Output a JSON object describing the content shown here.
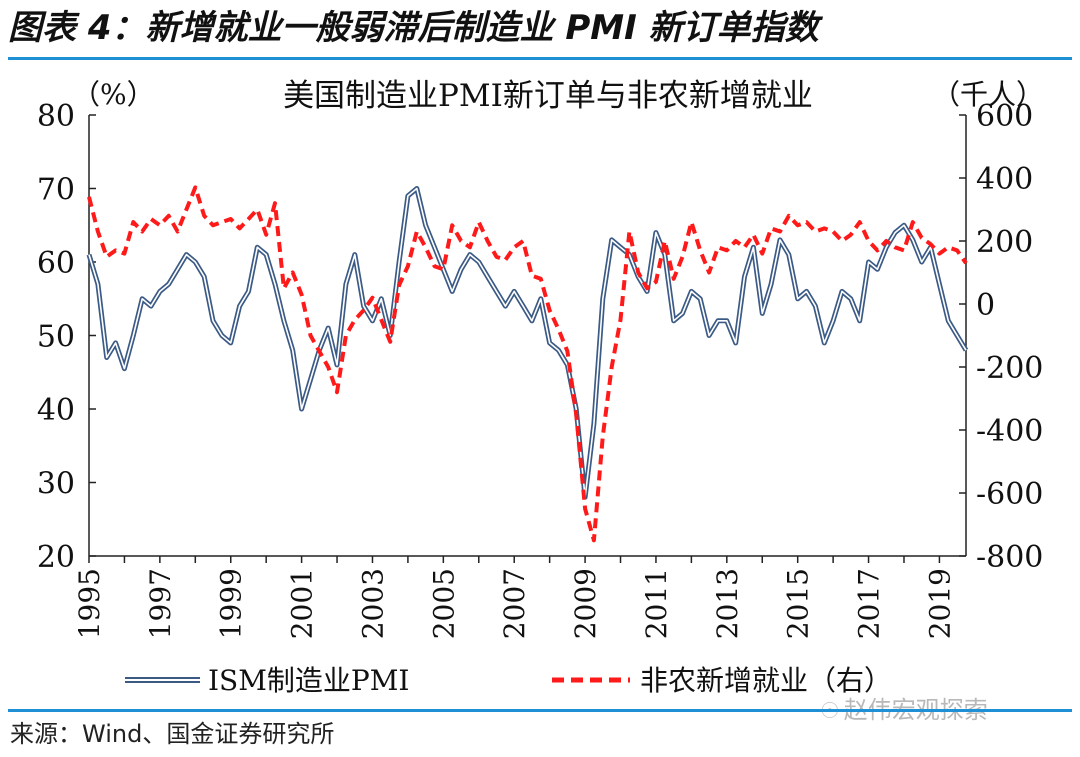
{
  "figure_title": "图表 4：新增就业一般弱滞后制造业 PMI 新订单指数",
  "source_text": "来源：Wind、国金证券研究所",
  "watermark": "赵伟宏观探索",
  "watermark_icon": "wechat-icon",
  "colors": {
    "pmi": "#3b5a85",
    "payrolls": "#ff1a1a",
    "rule": "#1f8fd6"
  },
  "chart_data": {
    "type": "line",
    "title": "美国制造业PMI新订单与非农新增就业",
    "left_unit": "（%）",
    "right_unit": "（千人）",
    "y_left_lim": [
      20,
      80
    ],
    "y_left_ticks": [
      "80",
      "70",
      "60",
      "50",
      "40",
      "30",
      "20"
    ],
    "y_left_tick_values": [
      80,
      70,
      60,
      50,
      40,
      30,
      20
    ],
    "y_right_lim": [
      -800,
      600
    ],
    "y_right_ticks": [
      "600",
      "400",
      "200",
      "0",
      "-200",
      "-400",
      "-600",
      "-800"
    ],
    "y_right_tick_values": [
      600,
      400,
      200,
      0,
      -200,
      -400,
      -600,
      -800
    ],
    "x_lim": [
      1995,
      2019.75
    ],
    "x_ticks": [
      "1995",
      "1997",
      "1999",
      "2001",
      "2003",
      "2005",
      "2007",
      "2009",
      "2011",
      "2013",
      "2015",
      "2017",
      "2019"
    ],
    "x_tick_values": [
      1995,
      1997,
      1999,
      2001,
      2003,
      2005,
      2007,
      2009,
      2011,
      2013,
      2015,
      2017,
      2019
    ],
    "series": [
      {
        "name": "ISM制造业PMI",
        "axis": "left",
        "style": "double-line",
        "points": [
          [
            1995.0,
            61
          ],
          [
            1995.25,
            57
          ],
          [
            1995.5,
            47
          ],
          [
            1995.75,
            49
          ],
          [
            1996.0,
            45.5
          ],
          [
            1996.25,
            50
          ],
          [
            1996.5,
            55
          ],
          [
            1996.75,
            54
          ],
          [
            1997.0,
            56
          ],
          [
            1997.25,
            57
          ],
          [
            1997.5,
            59
          ],
          [
            1997.75,
            61
          ],
          [
            1998.0,
            60
          ],
          [
            1998.25,
            58
          ],
          [
            1998.5,
            52
          ],
          [
            1998.75,
            50
          ],
          [
            1999.0,
            49
          ],
          [
            1999.25,
            54
          ],
          [
            1999.5,
            56
          ],
          [
            1999.75,
            62
          ],
          [
            2000.0,
            61
          ],
          [
            2000.25,
            57
          ],
          [
            2000.5,
            52
          ],
          [
            2000.75,
            48
          ],
          [
            2001.0,
            40
          ],
          [
            2001.25,
            44
          ],
          [
            2001.5,
            48
          ],
          [
            2001.75,
            51
          ],
          [
            2002.0,
            46
          ],
          [
            2002.25,
            57
          ],
          [
            2002.5,
            61
          ],
          [
            2002.75,
            54
          ],
          [
            2003.0,
            52
          ],
          [
            2003.25,
            55
          ],
          [
            2003.5,
            50
          ],
          [
            2003.75,
            60
          ],
          [
            2004.0,
            69
          ],
          [
            2004.25,
            70
          ],
          [
            2004.5,
            65
          ],
          [
            2004.75,
            62
          ],
          [
            2005.0,
            59
          ],
          [
            2005.25,
            56
          ],
          [
            2005.5,
            59
          ],
          [
            2005.75,
            61
          ],
          [
            2006.0,
            60
          ],
          [
            2006.25,
            58
          ],
          [
            2006.5,
            56
          ],
          [
            2006.75,
            54
          ],
          [
            2007.0,
            56
          ],
          [
            2007.25,
            54
          ],
          [
            2007.5,
            52
          ],
          [
            2007.75,
            55
          ],
          [
            2008.0,
            49
          ],
          [
            2008.25,
            48
          ],
          [
            2008.5,
            46
          ],
          [
            2008.75,
            40
          ],
          [
            2009.0,
            28
          ],
          [
            2009.25,
            38
          ],
          [
            2009.5,
            55
          ],
          [
            2009.75,
            63
          ],
          [
            2010.0,
            62
          ],
          [
            2010.25,
            61
          ],
          [
            2010.5,
            58
          ],
          [
            2010.75,
            56
          ],
          [
            2011.0,
            64
          ],
          [
            2011.25,
            61
          ],
          [
            2011.5,
            52
          ],
          [
            2011.75,
            53
          ],
          [
            2012.0,
            56
          ],
          [
            2012.25,
            55
          ],
          [
            2012.5,
            50
          ],
          [
            2012.75,
            52
          ],
          [
            2013.0,
            52
          ],
          [
            2013.25,
            49
          ],
          [
            2013.5,
            58
          ],
          [
            2013.75,
            62
          ],
          [
            2014.0,
            53
          ],
          [
            2014.25,
            57
          ],
          [
            2014.5,
            63
          ],
          [
            2014.75,
            61
          ],
          [
            2015.0,
            55
          ],
          [
            2015.25,
            56
          ],
          [
            2015.5,
            54
          ],
          [
            2015.75,
            49
          ],
          [
            2016.0,
            52
          ],
          [
            2016.25,
            56
          ],
          [
            2016.5,
            55
          ],
          [
            2016.75,
            52
          ],
          [
            2017.0,
            60
          ],
          [
            2017.25,
            59
          ],
          [
            2017.5,
            62
          ],
          [
            2017.75,
            64
          ],
          [
            2018.0,
            65
          ],
          [
            2018.25,
            63
          ],
          [
            2018.5,
            60
          ],
          [
            2018.75,
            62
          ],
          [
            2019.0,
            57
          ],
          [
            2019.25,
            52
          ],
          [
            2019.5,
            50
          ],
          [
            2019.75,
            48
          ]
        ]
      },
      {
        "name": "非农新增就业（右）",
        "axis": "right",
        "style": "dashed",
        "points": [
          [
            1995.0,
            340
          ],
          [
            1995.25,
            230
          ],
          [
            1995.5,
            150
          ],
          [
            1995.75,
            170
          ],
          [
            1996.0,
            160
          ],
          [
            1996.25,
            260
          ],
          [
            1996.5,
            230
          ],
          [
            1996.75,
            270
          ],
          [
            1997.0,
            250
          ],
          [
            1997.25,
            280
          ],
          [
            1997.5,
            230
          ],
          [
            1997.75,
            300
          ],
          [
            1998.0,
            370
          ],
          [
            1998.25,
            280
          ],
          [
            1998.5,
            250
          ],
          [
            1998.75,
            260
          ],
          [
            1999.0,
            270
          ],
          [
            1999.25,
            240
          ],
          [
            1999.5,
            270
          ],
          [
            1999.75,
            300
          ],
          [
            2000.0,
            220
          ],
          [
            2000.25,
            320
          ],
          [
            2000.5,
            50
          ],
          [
            2000.75,
            100
          ],
          [
            2001.0,
            30
          ],
          [
            2001.25,
            -100
          ],
          [
            2001.5,
            -150
          ],
          [
            2001.75,
            -200
          ],
          [
            2002.0,
            -280
          ],
          [
            2002.25,
            -100
          ],
          [
            2002.5,
            -50
          ],
          [
            2002.75,
            -20
          ],
          [
            2003.0,
            20
          ],
          [
            2003.25,
            -50
          ],
          [
            2003.5,
            -120
          ],
          [
            2003.75,
            60
          ],
          [
            2004.0,
            120
          ],
          [
            2004.25,
            230
          ],
          [
            2004.5,
            180
          ],
          [
            2004.75,
            120
          ],
          [
            2005.0,
            110
          ],
          [
            2005.25,
            250
          ],
          [
            2005.5,
            200
          ],
          [
            2005.75,
            180
          ],
          [
            2006.0,
            260
          ],
          [
            2006.25,
            200
          ],
          [
            2006.5,
            150
          ],
          [
            2006.75,
            140
          ],
          [
            2007.0,
            180
          ],
          [
            2007.25,
            200
          ],
          [
            2007.5,
            90
          ],
          [
            2007.75,
            80
          ],
          [
            2008.0,
            -20
          ],
          [
            2008.25,
            -80
          ],
          [
            2008.5,
            -150
          ],
          [
            2008.75,
            -350
          ],
          [
            2009.0,
            -650
          ],
          [
            2009.25,
            -750
          ],
          [
            2009.5,
            -420
          ],
          [
            2009.75,
            -200
          ],
          [
            2010.0,
            -50
          ],
          [
            2010.25,
            230
          ],
          [
            2010.5,
            100
          ],
          [
            2010.75,
            50
          ],
          [
            2011.0,
            70
          ],
          [
            2011.25,
            200
          ],
          [
            2011.5,
            80
          ],
          [
            2011.75,
            150
          ],
          [
            2012.0,
            260
          ],
          [
            2012.25,
            170
          ],
          [
            2012.5,
            100
          ],
          [
            2012.75,
            180
          ],
          [
            2013.0,
            170
          ],
          [
            2013.25,
            200
          ],
          [
            2013.5,
            180
          ],
          [
            2013.75,
            220
          ],
          [
            2014.0,
            160
          ],
          [
            2014.25,
            240
          ],
          [
            2014.5,
            230
          ],
          [
            2014.75,
            280
          ],
          [
            2015.0,
            250
          ],
          [
            2015.25,
            260
          ],
          [
            2015.5,
            230
          ],
          [
            2015.75,
            240
          ],
          [
            2016.0,
            230
          ],
          [
            2016.25,
            200
          ],
          [
            2016.5,
            220
          ],
          [
            2016.75,
            260
          ],
          [
            2017.0,
            200
          ],
          [
            2017.25,
            170
          ],
          [
            2017.5,
            200
          ],
          [
            2017.75,
            180
          ],
          [
            2018.0,
            170
          ],
          [
            2018.25,
            260
          ],
          [
            2018.5,
            210
          ],
          [
            2018.75,
            190
          ],
          [
            2019.0,
            160
          ],
          [
            2019.25,
            180
          ],
          [
            2019.5,
            170
          ],
          [
            2019.75,
            130
          ]
        ]
      }
    ],
    "legend": [
      "ISM制造业PMI",
      "非农新增就业（右）"
    ],
    "legend_position": "bottom"
  }
}
